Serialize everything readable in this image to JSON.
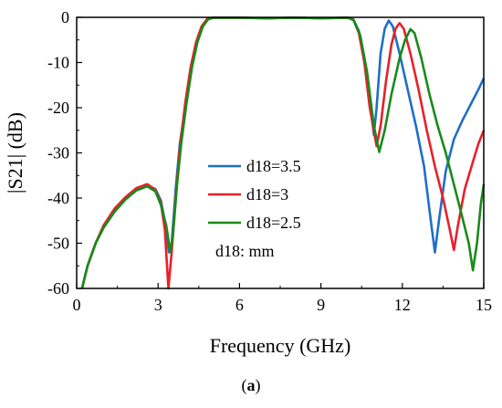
{
  "chart_data": {
    "type": "line",
    "title": "",
    "xlabel": "Frequency (GHz)",
    "ylabel": "|S21| (dB)",
    "xlim": [
      0,
      15
    ],
    "ylim": [
      -60,
      0
    ],
    "xticks": [
      0,
      3,
      6,
      9,
      12,
      15
    ],
    "yticks": [
      0,
      -10,
      -20,
      -30,
      -40,
      -50,
      -60
    ],
    "grid": false,
    "legend_position": "center",
    "legend_note": "d18: mm",
    "series": [
      {
        "name": "d18=3.5",
        "color": "#1f6fc6",
        "points": [
          [
            0.2,
            -60
          ],
          [
            0.4,
            -55
          ],
          [
            0.7,
            -50
          ],
          [
            1.0,
            -46
          ],
          [
            1.4,
            -42.5
          ],
          [
            1.8,
            -40
          ],
          [
            2.2,
            -38
          ],
          [
            2.6,
            -37.1
          ],
          [
            2.9,
            -38
          ],
          [
            3.1,
            -40.5
          ],
          [
            3.25,
            -45
          ],
          [
            3.4,
            -52
          ],
          [
            3.5,
            -50
          ],
          [
            3.65,
            -38
          ],
          [
            3.8,
            -28
          ],
          [
            4.0,
            -20
          ],
          [
            4.2,
            -12
          ],
          [
            4.4,
            -6
          ],
          [
            4.6,
            -2.5
          ],
          [
            4.8,
            -0.5
          ],
          [
            5.0,
            -0.1
          ],
          [
            6,
            -0.1
          ],
          [
            7,
            -0.2
          ],
          [
            8,
            -0.1
          ],
          [
            9,
            -0.2
          ],
          [
            10,
            -0.1
          ],
          [
            10.2,
            -0.5
          ],
          [
            10.4,
            -3
          ],
          [
            10.6,
            -9
          ],
          [
            10.8,
            -18
          ],
          [
            10.95,
            -26
          ],
          [
            11.05,
            -20
          ],
          [
            11.2,
            -8
          ],
          [
            11.35,
            -2.5
          ],
          [
            11.5,
            -0.7
          ],
          [
            11.65,
            -2
          ],
          [
            11.9,
            -8
          ],
          [
            12.2,
            -16
          ],
          [
            12.5,
            -24
          ],
          [
            12.8,
            -33
          ],
          [
            13.05,
            -45
          ],
          [
            13.2,
            -52
          ],
          [
            13.35,
            -45
          ],
          [
            13.6,
            -34
          ],
          [
            13.9,
            -27
          ],
          [
            14.2,
            -23
          ],
          [
            14.5,
            -19.5
          ],
          [
            14.8,
            -16
          ],
          [
            15.0,
            -13.5
          ]
        ]
      },
      {
        "name": "d18=3",
        "color": "#e8202a",
        "points": [
          [
            0.2,
            -60
          ],
          [
            0.4,
            -55
          ],
          [
            0.7,
            -50
          ],
          [
            1.0,
            -46
          ],
          [
            1.4,
            -42.3
          ],
          [
            1.8,
            -39.8
          ],
          [
            2.2,
            -37.8
          ],
          [
            2.6,
            -36.9
          ],
          [
            2.9,
            -38.2
          ],
          [
            3.1,
            -41
          ],
          [
            3.25,
            -47
          ],
          [
            3.38,
            -60
          ],
          [
            3.5,
            -52
          ],
          [
            3.65,
            -40
          ],
          [
            3.8,
            -29
          ],
          [
            4.0,
            -19
          ],
          [
            4.2,
            -11
          ],
          [
            4.4,
            -5.5
          ],
          [
            4.6,
            -2
          ],
          [
            4.8,
            -0.4
          ],
          [
            5.0,
            -0.1
          ],
          [
            6,
            -0.1
          ],
          [
            7,
            -0.2
          ],
          [
            8,
            -0.1
          ],
          [
            9,
            -0.2
          ],
          [
            10,
            -0.1
          ],
          [
            10.2,
            -0.5
          ],
          [
            10.4,
            -3.5
          ],
          [
            10.6,
            -10
          ],
          [
            10.8,
            -20
          ],
          [
            11.05,
            -28.5
          ],
          [
            11.2,
            -24
          ],
          [
            11.4,
            -14
          ],
          [
            11.6,
            -6
          ],
          [
            11.75,
            -2.5
          ],
          [
            11.9,
            -1.3
          ],
          [
            12.05,
            -2.5
          ],
          [
            12.3,
            -8
          ],
          [
            12.6,
            -16
          ],
          [
            12.9,
            -25
          ],
          [
            13.2,
            -33
          ],
          [
            13.5,
            -40
          ],
          [
            13.75,
            -47
          ],
          [
            13.9,
            -51.5
          ],
          [
            14.05,
            -46
          ],
          [
            14.3,
            -38
          ],
          [
            14.6,
            -32
          ],
          [
            14.8,
            -28
          ],
          [
            15.0,
            -25
          ]
        ]
      },
      {
        "name": "d18=2.5",
        "color": "#1a8a1a",
        "points": [
          [
            0.2,
            -60
          ],
          [
            0.4,
            -55
          ],
          [
            0.7,
            -50
          ],
          [
            1.0,
            -46.5
          ],
          [
            1.4,
            -43
          ],
          [
            1.8,
            -40.3
          ],
          [
            2.2,
            -38.3
          ],
          [
            2.6,
            -37.4
          ],
          [
            2.9,
            -38.5
          ],
          [
            3.1,
            -41.5
          ],
          [
            3.3,
            -46
          ],
          [
            3.45,
            -52
          ],
          [
            3.55,
            -48
          ],
          [
            3.7,
            -37
          ],
          [
            3.85,
            -28
          ],
          [
            4.05,
            -19
          ],
          [
            4.25,
            -11
          ],
          [
            4.45,
            -5.5
          ],
          [
            4.65,
            -2
          ],
          [
            4.85,
            -0.4
          ],
          [
            5.05,
            -0.1
          ],
          [
            6,
            -0.1
          ],
          [
            7,
            -0.2
          ],
          [
            8,
            -0.1
          ],
          [
            9,
            -0.2
          ],
          [
            10,
            -0.1
          ],
          [
            10.2,
            -0.6
          ],
          [
            10.45,
            -4
          ],
          [
            10.7,
            -12
          ],
          [
            10.95,
            -24
          ],
          [
            11.15,
            -29.8
          ],
          [
            11.35,
            -25
          ],
          [
            11.6,
            -17
          ],
          [
            11.9,
            -9
          ],
          [
            12.1,
            -5
          ],
          [
            12.3,
            -2.6
          ],
          [
            12.45,
            -3.5
          ],
          [
            12.7,
            -9
          ],
          [
            13.0,
            -17
          ],
          [
            13.3,
            -24
          ],
          [
            13.6,
            -30
          ],
          [
            13.9,
            -37
          ],
          [
            14.2,
            -44
          ],
          [
            14.45,
            -50
          ],
          [
            14.6,
            -56
          ],
          [
            14.75,
            -50
          ],
          [
            14.9,
            -41
          ],
          [
            15.0,
            -37
          ]
        ]
      }
    ]
  },
  "caption": {
    "open": "(",
    "label": "a",
    "close": ")"
  }
}
